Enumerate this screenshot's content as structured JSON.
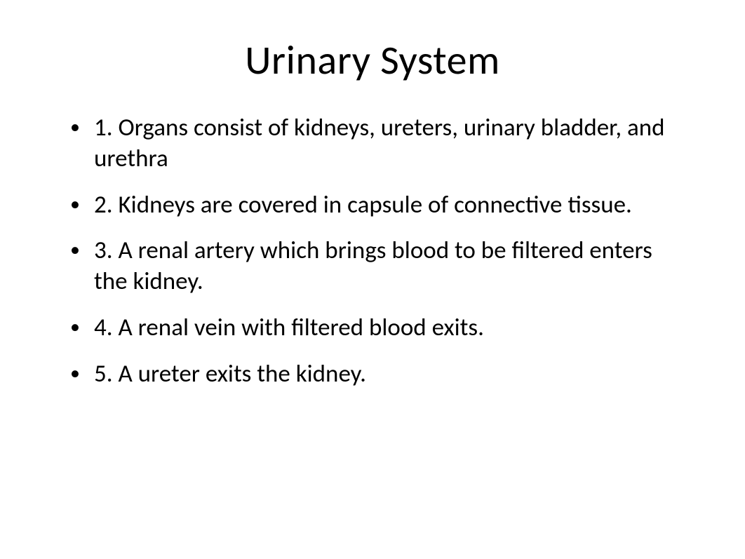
{
  "title": "Urinary System",
  "bullets": [
    "1.  Organs consist of kidneys, ureters, urinary bladder, and urethra",
    "2.  Kidneys are covered in capsule of connective tissue.",
    "3.  A renal artery which brings blood to be filtered enters the kidney.",
    "4.  A renal vein with filtered blood exits.",
    "5.  A ureter exits the kidney."
  ],
  "style": {
    "background_color": "#ffffff",
    "text_color": "#000000",
    "title_fontsize": 58,
    "body_fontsize": 35,
    "font_family": "Calibri"
  }
}
